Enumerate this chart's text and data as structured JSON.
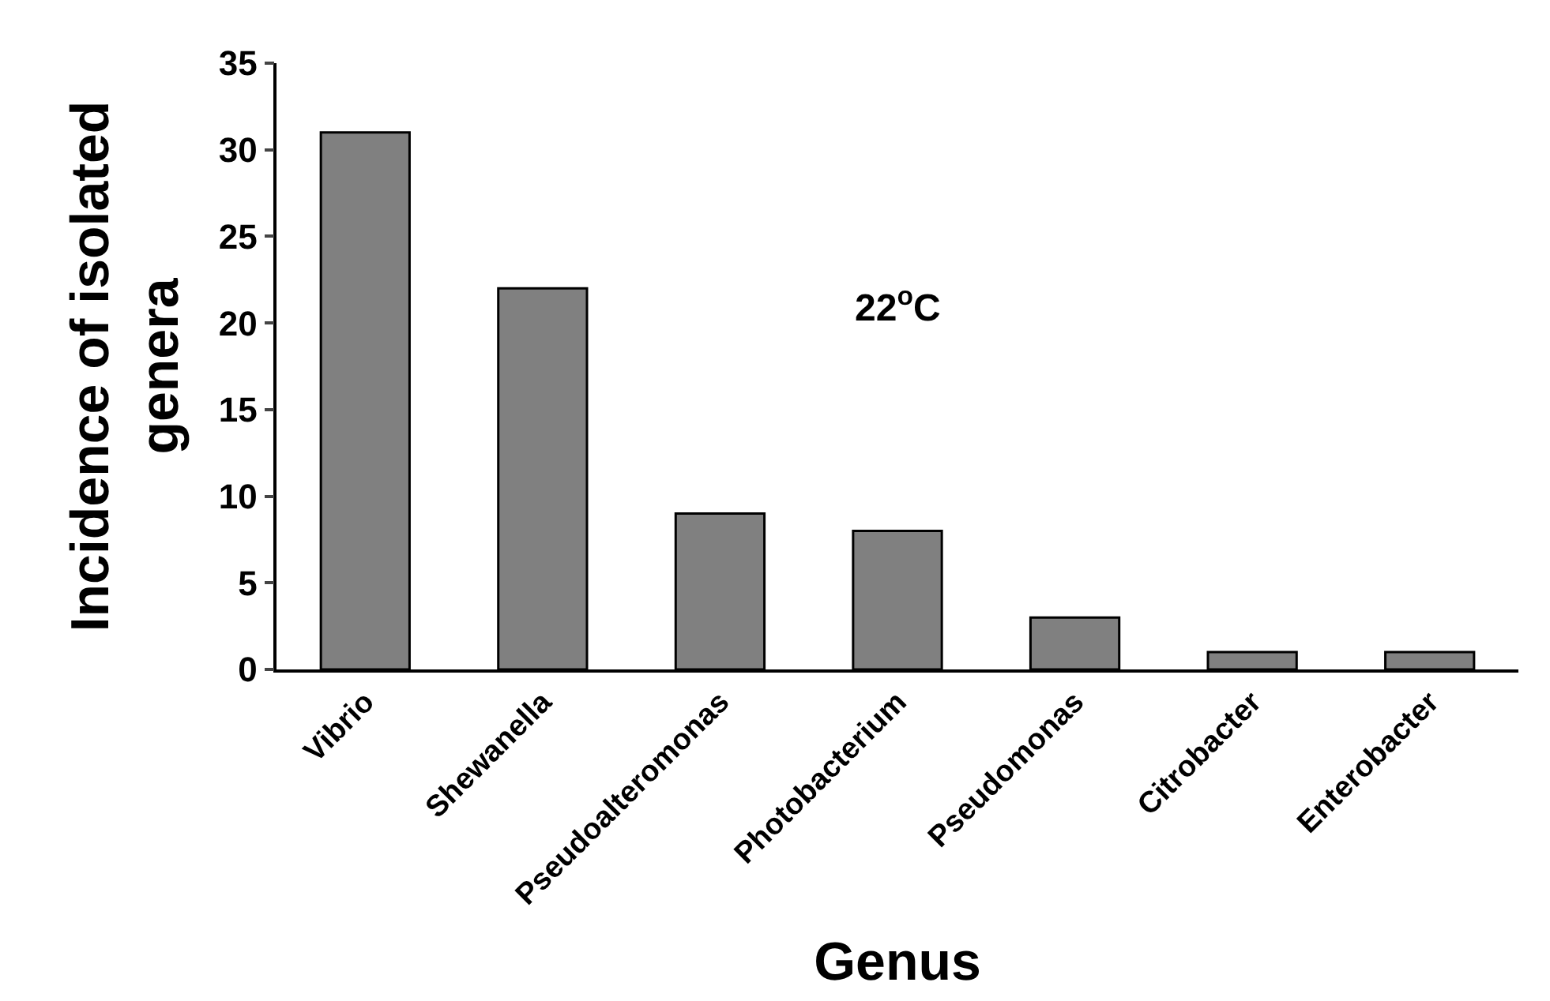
{
  "chart_data": {
    "type": "bar",
    "xlabel": "Genus",
    "ylabel": "Incidence of isolated genera",
    "categories": [
      "Vibrio",
      "Shewanella",
      "Pseudoalteromonas",
      "Photobacterium",
      "Pseudomonas",
      "Citrobacter",
      "Enterobacter"
    ],
    "values": [
      31,
      22,
      9,
      8,
      3,
      1,
      1
    ],
    "color": "#808080",
    "ylim": [
      0,
      35
    ],
    "yticks": [
      0,
      5,
      10,
      15,
      20,
      25,
      30,
      35
    ],
    "legend": false,
    "annotations": [
      "22$^{o}$C"
    ]
  }
}
